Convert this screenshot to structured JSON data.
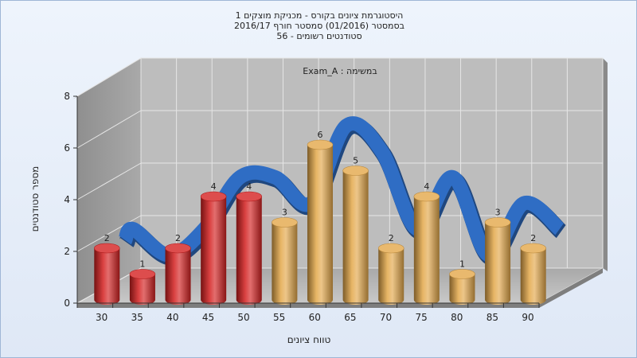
{
  "chart_data": {
    "type": "bar",
    "title_lines": [
      "היסטוגרמת ציונים בקורס - מכניקת מוצקים 1",
      "בסמסטר  (01/2016)  סמסטר חורף  2016/17",
      "סטודנטים רשומים - 56"
    ],
    "annotation": "במשימה : Exam_A",
    "xlabel": "טווח ציונים",
    "ylabel": "מספר סטודנטים",
    "x_ticks": [
      "30",
      "35",
      "40",
      "45",
      "50",
      "55",
      "60",
      "65",
      "70",
      "75",
      "80",
      "85",
      "90"
    ],
    "y_ticks": [
      "0",
      "2",
      "4",
      "6",
      "8"
    ],
    "ylim": [
      0,
      8
    ],
    "values": [
      2,
      1,
      2,
      4,
      4,
      3,
      6,
      5,
      2,
      4,
      1,
      3,
      2
    ],
    "bar_colors": [
      "#d42020",
      "#d42020",
      "#d42020",
      "#d42020",
      "#d42020",
      "#e3a84a",
      "#e3a84a",
      "#e3a84a",
      "#e3a84a",
      "#e3a84a",
      "#e3a84a",
      "#e3a84a",
      "#e3a84a"
    ],
    "curve_color": "#2f6dc4",
    "grid": true
  }
}
